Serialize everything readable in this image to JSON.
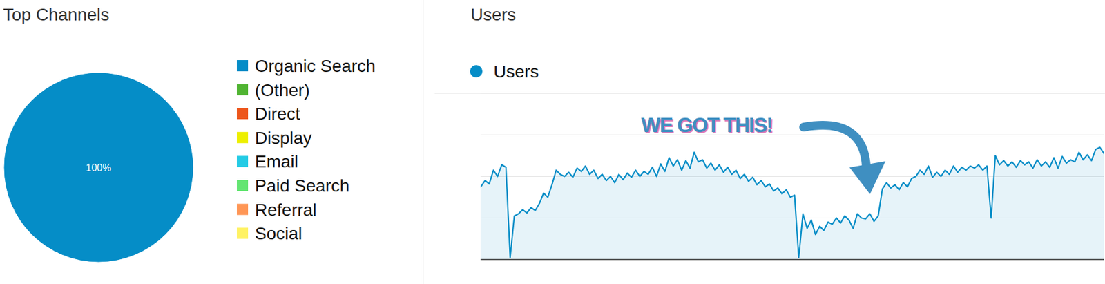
{
  "chart_data": [
    {
      "type": "pie",
      "title": "Top Channels",
      "categories": [
        "Organic Search",
        "(Other)",
        "Direct",
        "Display",
        "Email",
        "Paid Search",
        "Referral",
        "Social"
      ],
      "values": [
        100,
        0,
        0,
        0,
        0,
        0,
        0,
        0
      ],
      "value_labels": [
        "100%",
        null,
        null,
        null,
        null,
        null,
        null,
        null
      ],
      "colors": [
        "#058dc7",
        "#50b432",
        "#ed561b",
        "#edef00",
        "#24cbe5",
        "#64e572",
        "#ff9655",
        "#fff263"
      ],
      "data_labels": true,
      "legend": "right"
    },
    {
      "type": "area",
      "title": "Users",
      "annotation": "WE GOT THIS!",
      "series": [
        {
          "name": "Users",
          "color": "#058dc7",
          "values": [
            175,
            190,
            182,
            215,
            200,
            228,
            222,
            5,
            105,
            110,
            120,
            112,
            125,
            118,
            135,
            160,
            150,
            180,
            215,
            205,
            200,
            210,
            198,
            220,
            212,
            225,
            205,
            215,
            195,
            205,
            190,
            200,
            185,
            205,
            192,
            208,
            198,
            215,
            200,
            212,
            205,
            222,
            200,
            230,
            212,
            245,
            225,
            240,
            215,
            238,
            220,
            258,
            235,
            240,
            220,
            232,
            215,
            228,
            210,
            222,
            205,
            215,
            195,
            205,
            188,
            198,
            180,
            190,
            175,
            182,
            165,
            172,
            158,
            168,
            150,
            155,
            5,
            110,
            75,
            95,
            60,
            80,
            70,
            90,
            85,
            100,
            88,
            105,
            95,
            75,
            110,
            100,
            98,
            110,
            92,
            105,
            170,
            185,
            172,
            180,
            168,
            185,
            175,
            195,
            200,
            215,
            205,
            225,
            198,
            210,
            200,
            215,
            205,
            225,
            210,
            222,
            215,
            225,
            220,
            228,
            215,
            225,
            100,
            250,
            228,
            238,
            225,
            235,
            222,
            238,
            228,
            235,
            220,
            240,
            225,
            235,
            222,
            245,
            220,
            248,
            232,
            240,
            235,
            258,
            240,
            252,
            238,
            265,
            270,
            255
          ]
        }
      ],
      "ylim": [
        0,
        400
      ],
      "yticks": [
        0,
        100,
        200,
        300,
        400
      ],
      "grid": true,
      "tick_labels": false,
      "legend": "top-left"
    }
  ]
}
